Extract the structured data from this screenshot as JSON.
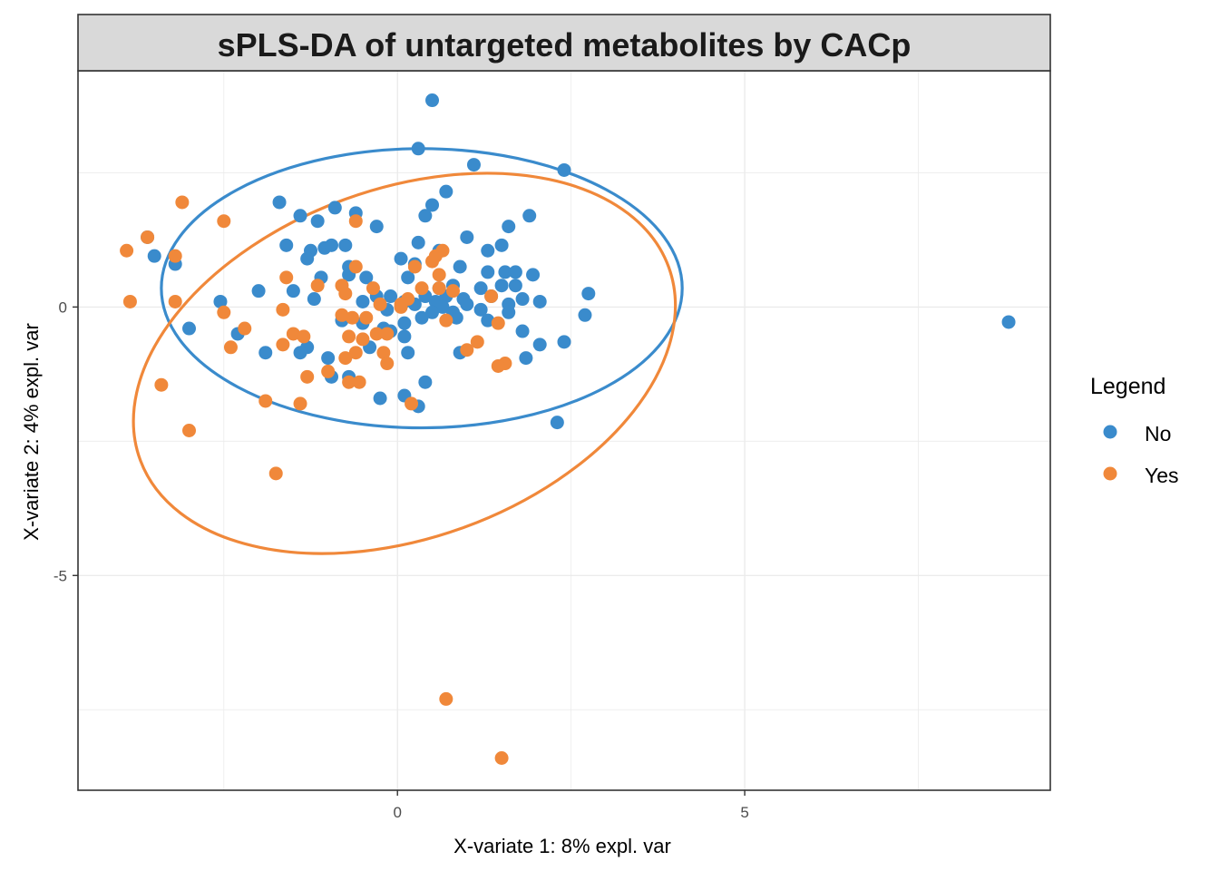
{
  "chart_data": {
    "type": "scatter",
    "title": "sPLS-DA of untargeted metabolites by CACp",
    "xlabel": "X-variate 1: 8% expl. var",
    "ylabel": "X-variate 2: 4% expl. var",
    "xlim": [
      -4.6,
      9.4
    ],
    "ylim": [
      -9.0,
      4.4
    ],
    "x_ticks": [
      0,
      5
    ],
    "x_tick_labels": [
      "0",
      "5"
    ],
    "y_ticks": [
      0,
      -5
    ],
    "y_tick_labels": [
      "0",
      "-5"
    ],
    "grid": true,
    "legend": {
      "title": "Legend",
      "position": "right"
    },
    "series": [
      {
        "name": "No",
        "color": "#3A8BCC",
        "ellipse": {
          "cx": 0.35,
          "cy": 0.35,
          "rx": 3.75,
          "ry": 2.6
        },
        "points": [
          [
            0.5,
            3.85
          ],
          [
            0.3,
            2.95
          ],
          [
            1.1,
            2.65
          ],
          [
            2.4,
            2.55
          ],
          [
            0.7,
            2.15
          ],
          [
            -1.7,
            1.95
          ],
          [
            -0.9,
            1.85
          ],
          [
            0.5,
            1.9
          ],
          [
            0.4,
            1.7
          ],
          [
            -0.6,
            1.75
          ],
          [
            -1.4,
            1.7
          ],
          [
            -1.15,
            1.6
          ],
          [
            -0.3,
            1.5
          ],
          [
            1.9,
            1.7
          ],
          [
            1.6,
            1.5
          ],
          [
            0.3,
            1.2
          ],
          [
            0.6,
            1.05
          ],
          [
            1.0,
            1.3
          ],
          [
            1.3,
            1.05
          ],
          [
            1.5,
            1.15
          ],
          [
            -3.6,
            1.3
          ],
          [
            -1.6,
            1.15
          ],
          [
            -1.05,
            1.1
          ],
          [
            -0.95,
            1.15
          ],
          [
            -1.25,
            1.05
          ],
          [
            -1.3,
            0.9
          ],
          [
            -0.75,
            1.15
          ],
          [
            -3.2,
            0.8
          ],
          [
            -3.5,
            0.95
          ],
          [
            0.05,
            0.9
          ],
          [
            0.25,
            0.8
          ],
          [
            -0.7,
            0.75
          ],
          [
            0.9,
            0.75
          ],
          [
            1.3,
            0.65
          ],
          [
            1.55,
            0.65
          ],
          [
            1.7,
            0.65
          ],
          [
            1.95,
            0.6
          ],
          [
            -0.7,
            0.6
          ],
          [
            -1.1,
            0.55
          ],
          [
            -0.45,
            0.55
          ],
          [
            0.15,
            0.55
          ],
          [
            1.5,
            0.4
          ],
          [
            1.7,
            0.4
          ],
          [
            0.6,
            0.35
          ],
          [
            0.8,
            0.4
          ],
          [
            1.2,
            0.35
          ],
          [
            -1.5,
            0.3
          ],
          [
            -2.0,
            0.3
          ],
          [
            2.75,
            0.25
          ],
          [
            -0.3,
            0.2
          ],
          [
            -0.1,
            0.2
          ],
          [
            0.4,
            0.2
          ],
          [
            0.7,
            0.2
          ],
          [
            0.95,
            0.15
          ],
          [
            1.35,
            0.2
          ],
          [
            1.8,
            0.15
          ],
          [
            2.05,
            0.1
          ],
          [
            -2.55,
            0.1
          ],
          [
            -1.2,
            0.15
          ],
          [
            0.1,
            0.1
          ],
          [
            0.55,
            0.1
          ],
          [
            1.0,
            0.05
          ],
          [
            -0.5,
            0.1
          ],
          [
            -0.15,
            -0.05
          ],
          [
            0.25,
            0.05
          ],
          [
            0.65,
            0.0
          ],
          [
            1.2,
            -0.05
          ],
          [
            1.6,
            0.05
          ],
          [
            0.5,
            -0.1
          ],
          [
            0.8,
            -0.1
          ],
          [
            1.6,
            -0.1
          ],
          [
            2.7,
            -0.15
          ],
          [
            -0.8,
            -0.25
          ],
          [
            -0.5,
            -0.3
          ],
          [
            0.1,
            -0.3
          ],
          [
            0.35,
            -0.2
          ],
          [
            0.85,
            -0.2
          ],
          [
            1.3,
            -0.25
          ],
          [
            -2.3,
            -0.5
          ],
          [
            -3.0,
            -0.4
          ],
          [
            -0.2,
            -0.4
          ],
          [
            -0.1,
            -0.45
          ],
          [
            0.1,
            -0.55
          ],
          [
            1.8,
            -0.45
          ],
          [
            2.4,
            -0.65
          ],
          [
            2.05,
            -0.7
          ],
          [
            -1.3,
            -0.75
          ],
          [
            -1.4,
            -0.85
          ],
          [
            -0.4,
            -0.75
          ],
          [
            -1.9,
            -0.85
          ],
          [
            -1.0,
            -0.95
          ],
          [
            0.15,
            -0.85
          ],
          [
            0.9,
            -0.85
          ],
          [
            1.85,
            -0.95
          ],
          [
            -0.95,
            -1.3
          ],
          [
            -0.7,
            -1.3
          ],
          [
            0.4,
            -1.4
          ],
          [
            -0.25,
            -1.7
          ],
          [
            0.3,
            -1.85
          ],
          [
            0.1,
            -1.65
          ],
          [
            2.3,
            -2.15
          ],
          [
            8.8,
            -0.28
          ]
        ]
      },
      {
        "name": "Yes",
        "color": "#F0883A",
        "ellipse": {
          "cx": 0.1,
          "cy": -1.05,
          "rx": 4.05,
          "ry": 3.25,
          "angle_deg": -20
        },
        "points": [
          [
            -3.1,
            1.95
          ],
          [
            -2.5,
            1.6
          ],
          [
            -0.6,
            1.6
          ],
          [
            -3.6,
            1.3
          ],
          [
            -3.9,
            1.05
          ],
          [
            0.65,
            1.05
          ],
          [
            0.55,
            0.95
          ],
          [
            0.5,
            0.85
          ],
          [
            -3.2,
            0.95
          ],
          [
            -0.6,
            0.75
          ],
          [
            0.25,
            0.75
          ],
          [
            -1.6,
            0.55
          ],
          [
            -1.15,
            0.4
          ],
          [
            -0.8,
            0.4
          ],
          [
            0.6,
            0.6
          ],
          [
            -0.35,
            0.35
          ],
          [
            -0.75,
            0.25
          ],
          [
            0.35,
            0.35
          ],
          [
            0.6,
            0.35
          ],
          [
            0.8,
            0.3
          ],
          [
            1.35,
            0.2
          ],
          [
            -3.85,
            0.1
          ],
          [
            -3.2,
            0.1
          ],
          [
            -0.25,
            0.05
          ],
          [
            0.05,
            0.05
          ],
          [
            0.15,
            0.15
          ],
          [
            0.05,
            0.0
          ],
          [
            -1.65,
            -0.05
          ],
          [
            -2.5,
            -0.1
          ],
          [
            -0.8,
            -0.15
          ],
          [
            -0.65,
            -0.2
          ],
          [
            -0.45,
            -0.2
          ],
          [
            0.7,
            -0.25
          ],
          [
            1.45,
            -0.3
          ],
          [
            -2.2,
            -0.4
          ],
          [
            -1.5,
            -0.5
          ],
          [
            -1.35,
            -0.55
          ],
          [
            -0.7,
            -0.55
          ],
          [
            -0.5,
            -0.6
          ],
          [
            -0.3,
            -0.5
          ],
          [
            -0.15,
            -0.5
          ],
          [
            -1.65,
            -0.7
          ],
          [
            -2.4,
            -0.75
          ],
          [
            -0.6,
            -0.85
          ],
          [
            -0.2,
            -0.85
          ],
          [
            1.15,
            -0.65
          ],
          [
            1.0,
            -0.8
          ],
          [
            -0.75,
            -0.95
          ],
          [
            -0.15,
            -1.05
          ],
          [
            1.55,
            -1.05
          ],
          [
            1.45,
            -1.1
          ],
          [
            -1.0,
            -1.2
          ],
          [
            -1.3,
            -1.3
          ],
          [
            -0.7,
            -1.4
          ],
          [
            -0.55,
            -1.4
          ],
          [
            -3.4,
            -1.45
          ],
          [
            -1.9,
            -1.75
          ],
          [
            -1.4,
            -1.8
          ],
          [
            0.2,
            -1.8
          ],
          [
            -3.0,
            -2.3
          ],
          [
            -1.75,
            -3.1
          ],
          [
            0.7,
            -7.3
          ],
          [
            1.5,
            -8.4
          ]
        ]
      }
    ]
  }
}
